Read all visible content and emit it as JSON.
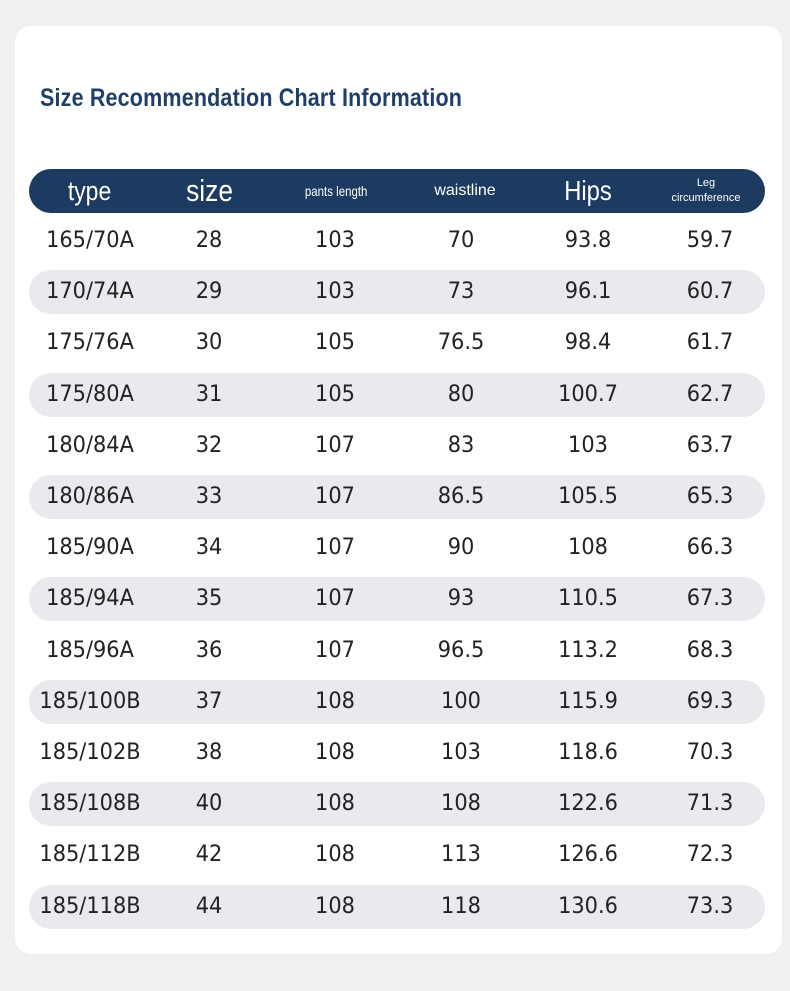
{
  "title": "Size Recommendation Chart Information",
  "headers": {
    "type": "type",
    "size": "size",
    "pants_length": "pants length",
    "waistline": "waistline",
    "hips": "Hips",
    "leg_line1": "Leg",
    "leg_line2": "circumference"
  },
  "rows": [
    [
      "165/70A",
      "28",
      "103",
      "70",
      "93.8",
      "59.7"
    ],
    [
      "170/74A",
      "29",
      "103",
      "73",
      "96.1",
      "60.7"
    ],
    [
      "175/76A",
      "30",
      "105",
      "76.5",
      "98.4",
      "61.7"
    ],
    [
      "175/80A",
      "31",
      "105",
      "80",
      "100.7",
      "62.7"
    ],
    [
      "180/84A",
      "32",
      "107",
      "83",
      "103",
      "63.7"
    ],
    [
      "180/86A",
      "33",
      "107",
      "86.5",
      "105.5",
      "65.3"
    ],
    [
      "185/90A",
      "34",
      "107",
      "90",
      "108",
      "66.3"
    ],
    [
      "185/94A",
      "35",
      "107",
      "93",
      "110.5",
      "67.3"
    ],
    [
      "185/96A",
      "36",
      "107",
      "96.5",
      "113.2",
      "68.3"
    ],
    [
      "185/100B",
      "37",
      "108",
      "100",
      "115.9",
      "69.3"
    ],
    [
      "185/102B",
      "38",
      "108",
      "103",
      "118.6",
      "70.3"
    ],
    [
      "185/108B",
      "40",
      "108",
      "108",
      "122.6",
      "71.3"
    ],
    [
      "185/112B",
      "42",
      "108",
      "113",
      "126.6",
      "72.3"
    ],
    [
      "185/118B",
      "44",
      "108",
      "118",
      "130.6",
      "73.3"
    ]
  ],
  "colors": {
    "header_bg": "#1d3a61",
    "title": "#1f3f66",
    "stripe": "#e8eaed"
  }
}
